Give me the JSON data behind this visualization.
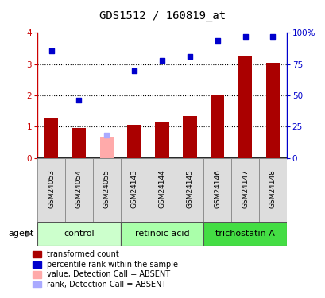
{
  "title": "GDS1512 / 160819_at",
  "samples": [
    "GSM24053",
    "GSM24054",
    "GSM24055",
    "GSM24143",
    "GSM24144",
    "GSM24145",
    "GSM24146",
    "GSM24147",
    "GSM24148"
  ],
  "bar_values": [
    1.3,
    0.95,
    0.65,
    1.05,
    1.15,
    1.35,
    2.0,
    3.25,
    3.05
  ],
  "bar_colors": [
    "#aa0000",
    "#aa0000",
    "#ffaaaa",
    "#aa0000",
    "#aa0000",
    "#aa0000",
    "#aa0000",
    "#aa0000",
    "#aa0000"
  ],
  "dot_values": [
    3.42,
    1.85,
    0.72,
    2.8,
    3.12,
    3.25,
    3.75,
    3.88,
    3.88
  ],
  "dot_absent": [
    false,
    false,
    true,
    false,
    false,
    false,
    false,
    false,
    false
  ],
  "ylim_left": [
    0,
    4
  ],
  "ylim_right": [
    0,
    100
  ],
  "yticks_left": [
    0,
    1,
    2,
    3,
    4
  ],
  "yticks_right": [
    0,
    25,
    50,
    75,
    100
  ],
  "groups": [
    {
      "label": "control",
      "start": 0,
      "end": 3,
      "color": "#ccffcc"
    },
    {
      "label": "retinoic acid",
      "start": 3,
      "end": 6,
      "color": "#aaffaa"
    },
    {
      "label": "trichostatin A",
      "start": 6,
      "end": 9,
      "color": "#44dd44"
    }
  ],
  "agent_label": "agent",
  "legend_items": [
    {
      "label": "transformed count",
      "color": "#aa0000"
    },
    {
      "label": "percentile rank within the sample",
      "color": "#0000cc"
    },
    {
      "label": "value, Detection Call = ABSENT",
      "color": "#ffaaaa"
    },
    {
      "label": "rank, Detection Call = ABSENT",
      "color": "#aaaaff"
    }
  ],
  "bar_width": 0.5,
  "dot_color_normal": "#0000cc",
  "dot_color_absent": "#aaaaff",
  "bar_color_absent": "#ffaaaa",
  "label_bg": "#dddddd",
  "spine_color_left": "#cc0000",
  "spine_color_right": "#0000cc"
}
